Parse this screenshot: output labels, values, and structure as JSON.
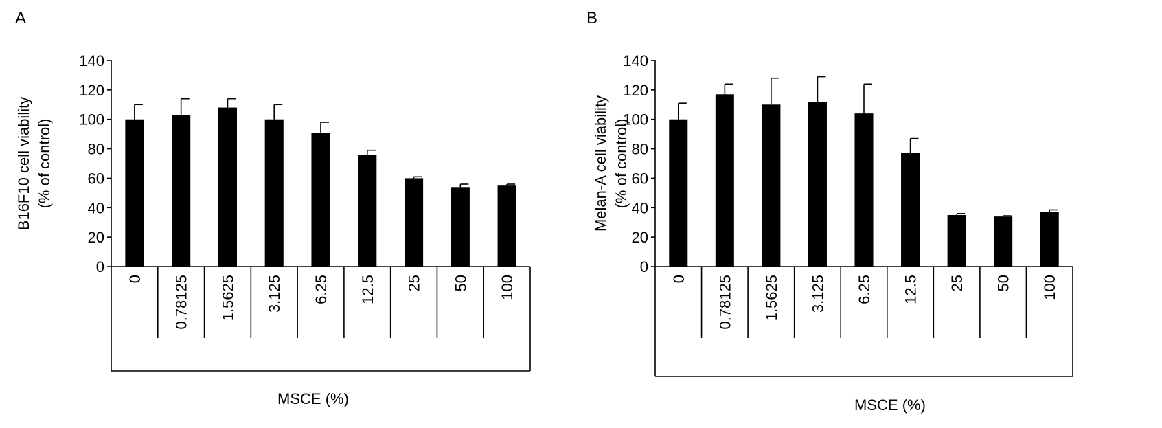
{
  "panels": [
    {
      "letter": "A",
      "chart_data": {
        "type": "bar",
        "categories": [
          "0",
          "0.78125",
          "1.5625",
          "3.125",
          "6.25",
          "12.5",
          "25",
          "50",
          "100"
        ],
        "values": [
          100,
          103,
          108,
          100,
          91,
          76,
          60,
          54,
          55
        ],
        "errors": [
          10,
          11,
          6,
          10,
          7,
          3,
          1,
          2,
          1
        ],
        "xlabel": "MSCE (%)",
        "ylabel_line1": "B16F10 cell viability",
        "ylabel_line2": "(% of control)",
        "ylim": [
          0,
          140
        ],
        "yticks": [
          0,
          20,
          40,
          60,
          80,
          100,
          120,
          140
        ],
        "bar_color": "#000000",
        "grid": false
      }
    },
    {
      "letter": "B",
      "chart_data": {
        "type": "bar",
        "categories": [
          "0",
          "0.78125",
          "1.5625",
          "3.125",
          "6.25",
          "12.5",
          "25",
          "50",
          "100"
        ],
        "values": [
          100,
          117,
          110,
          112,
          104,
          77,
          35,
          34,
          37
        ],
        "errors": [
          11,
          7,
          18,
          17,
          20,
          10,
          1,
          0.5,
          1.5
        ],
        "xlabel": "MSCE (%)",
        "ylabel_line1": "Melan-A cell viability",
        "ylabel_line2": "(% of control)",
        "ylim": [
          0,
          140
        ],
        "yticks": [
          0,
          20,
          40,
          60,
          80,
          100,
          120,
          140
        ],
        "bar_color": "#000000",
        "grid": false
      }
    }
  ]
}
